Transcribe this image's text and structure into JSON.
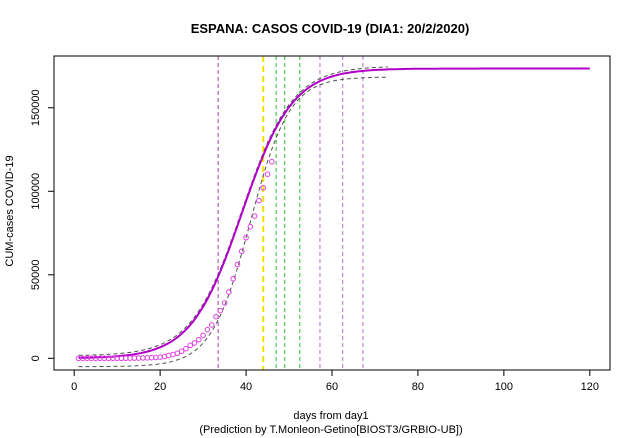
{
  "chart_data": {
    "type": "scatter",
    "title": "ESPANA: CASOS COVID-19 (DIA1: 20/2/2020)",
    "xlabel": "days from day1",
    "xlabel2": "(Prediction by T.Monleon-Getino[BIOST3/GRBIO-UB])",
    "ylabel": "CUM-cases COVID-19",
    "xlim": [
      -4.7,
      124.7
    ],
    "ylim": [
      -7000,
      181000
    ],
    "xticks": [
      0,
      20,
      40,
      60,
      80,
      100,
      120
    ],
    "yticks": [
      0,
      50000,
      100000,
      150000
    ],
    "ytick_labels": [
      "0",
      "50000",
      "100000",
      "150000"
    ],
    "grid": false,
    "colors": {
      "observed": "#e040e0",
      "fit": "#b000c8",
      "band": "#505050",
      "vline_purple": "#a040a0",
      "vline_yellow": "#f0e000",
      "vline_green": "#30c030",
      "vline_violet": "#b070d0"
    },
    "series": [
      {
        "kind": "points",
        "x": [
          1,
          2,
          3,
          4,
          5,
          6,
          7,
          8,
          9,
          10,
          11,
          12,
          13,
          14,
          15,
          16,
          17,
          18,
          19,
          20,
          21,
          22,
          23,
          24,
          25,
          26,
          27,
          28,
          29,
          30,
          31,
          32,
          33,
          34,
          35,
          36,
          37,
          38,
          39,
          40,
          41,
          42,
          43,
          44
        ],
        "y": [
          2,
          2,
          2,
          2,
          2,
          2,
          2,
          2,
          2,
          2,
          2,
          45,
          84,
          120,
          165,
          228,
          282,
          400,
          525,
          674,
          1073,
          1695,
          2277,
          3004,
          4231,
          5753,
          7753,
          9191,
          11178,
          13716,
          17147,
          19980,
          24926,
          28572,
          33089,
          39673,
          47610,
          56188,
          64059,
          72248,
          78797,
          85195,
          94417,
          102136
        ]
      },
      {
        "kind": "points",
        "x": [
          45,
          46
        ],
        "y": [
          110238,
          117710
        ]
      },
      {
        "kind": "fit",
        "model": "logistic",
        "K": 173500,
        "r": 0.17,
        "x0": 39
      },
      {
        "kind": "band-lower",
        "model": "logistic",
        "K": 173500,
        "r": 0.22,
        "x0": 41,
        "offset": -5000
      },
      {
        "kind": "band-upper",
        "model": "logistic",
        "K": 173500,
        "r": 0.17,
        "x0": 39,
        "offset": 1500
      }
    ],
    "vlines": [
      {
        "x": 33.5,
        "style": "purple"
      },
      {
        "x": 44,
        "style": "yellow"
      },
      {
        "x": 47,
        "style": "green"
      },
      {
        "x": 49,
        "style": "green"
      },
      {
        "x": 52.5,
        "style": "green"
      },
      {
        "x": 57.2,
        "style": "violet"
      },
      {
        "x": 62.5,
        "style": "violet"
      },
      {
        "x": 67.2,
        "style": "violet"
      }
    ]
  }
}
